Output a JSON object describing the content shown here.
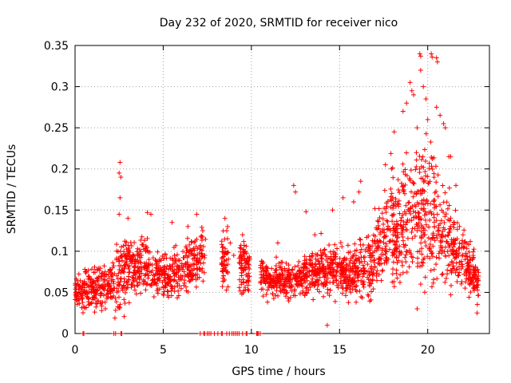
{
  "chart_data": {
    "type": "scatter",
    "title": "Day 232 of 2020, SRMTID for receiver nico",
    "xlabel": "GPS time / hours",
    "ylabel": "SRMTID / TECUs",
    "xlim": [
      0,
      23.5
    ],
    "ylim": [
      0,
      0.35
    ],
    "xticks": [
      0,
      5,
      10,
      15,
      20
    ],
    "xtick_labels": [
      "0",
      "5",
      "10",
      "15",
      "20"
    ],
    "yticks": [
      0,
      0.05,
      0.1,
      0.15,
      0.2,
      0.25,
      0.3,
      0.35
    ],
    "ytick_labels": [
      "0",
      "0.05",
      "0.1",
      "0.15",
      "0.2",
      "0.25",
      "0.3",
      "0.35"
    ],
    "grid": true,
    "marker": "plus",
    "color": "#ff0000",
    "profile_hours": [
      0,
      1,
      2,
      2.5,
      3,
      4,
      5,
      6,
      7,
      7.4,
      8.5,
      9.6,
      10.5,
      11,
      12,
      13,
      14,
      15,
      16,
      17,
      17.5,
      18,
      19,
      19.5,
      20,
      20.5,
      21,
      22,
      23
    ],
    "profile_center": [
      0.05,
      0.055,
      0.058,
      0.07,
      0.08,
      0.085,
      0.07,
      0.075,
      0.09,
      0.1,
      0.09,
      0.08,
      0.07,
      0.065,
      0.065,
      0.07,
      0.08,
      0.075,
      0.075,
      0.09,
      0.11,
      0.13,
      0.14,
      0.15,
      0.16,
      0.14,
      0.12,
      0.09,
      0.06
    ],
    "profile_spread": [
      0.015,
      0.02,
      0.02,
      0.04,
      0.03,
      0.025,
      0.02,
      0.025,
      0.025,
      0.03,
      0.03,
      0.025,
      0.02,
      0.015,
      0.02,
      0.02,
      0.025,
      0.025,
      0.03,
      0.035,
      0.045,
      0.06,
      0.065,
      0.07,
      0.07,
      0.06,
      0.05,
      0.03,
      0.02
    ],
    "gaps": [
      [
        7.4,
        8.3
      ],
      [
        8.7,
        9.3
      ],
      [
        9.9,
        10.5
      ]
    ],
    "sparse_points": [
      {
        "x": 8.5,
        "y": 0.14
      },
      {
        "x": 8.6,
        "y": 0.125
      },
      {
        "x": 8.8,
        "y": 0.11
      },
      {
        "x": 9.0,
        "y": 0.095
      },
      {
        "x": 9.5,
        "y": 0.12
      },
      {
        "x": 9.6,
        "y": 0.1
      },
      {
        "x": 9.7,
        "y": 0.08
      },
      {
        "x": 9.8,
        "y": 0.07
      }
    ],
    "outliers": [
      {
        "x": 2.55,
        "y": 0.208
      },
      {
        "x": 2.5,
        "y": 0.195
      },
      {
        "x": 2.6,
        "y": 0.19
      },
      {
        "x": 2.55,
        "y": 0.165
      },
      {
        "x": 2.5,
        "y": 0.145
      },
      {
        "x": 4.1,
        "y": 0.147
      },
      {
        "x": 4.3,
        "y": 0.145
      },
      {
        "x": 6.4,
        "y": 0.13
      },
      {
        "x": 12.4,
        "y": 0.18
      },
      {
        "x": 12.5,
        "y": 0.172
      },
      {
        "x": 13.1,
        "y": 0.148
      },
      {
        "x": 14.3,
        "y": 0.01
      },
      {
        "x": 16.2,
        "y": 0.185
      },
      {
        "x": 16.1,
        "y": 0.172
      },
      {
        "x": 17.6,
        "y": 0.205
      },
      {
        "x": 18.1,
        "y": 0.245
      },
      {
        "x": 18.6,
        "y": 0.27
      },
      {
        "x": 18.8,
        "y": 0.28
      },
      {
        "x": 19.0,
        "y": 0.305
      },
      {
        "x": 19.1,
        "y": 0.295
      },
      {
        "x": 19.2,
        "y": 0.29
      },
      {
        "x": 19.4,
        "y": 0.25
      },
      {
        "x": 19.6,
        "y": 0.32
      },
      {
        "x": 19.75,
        "y": 0.3
      },
      {
        "x": 19.9,
        "y": 0.285
      },
      {
        "x": 20.0,
        "y": 0.26
      },
      {
        "x": 20.2,
        "y": 0.34
      },
      {
        "x": 20.25,
        "y": 0.336
      },
      {
        "x": 19.55,
        "y": 0.34
      },
      {
        "x": 19.6,
        "y": 0.337
      },
      {
        "x": 20.5,
        "y": 0.335
      },
      {
        "x": 20.55,
        "y": 0.33
      },
      {
        "x": 20.7,
        "y": 0.265
      },
      {
        "x": 21.0,
        "y": 0.25
      },
      {
        "x": 20.9,
        "y": 0.255
      },
      {
        "x": 21.2,
        "y": 0.215
      },
      {
        "x": 21.3,
        "y": 0.215
      },
      {
        "x": 21.6,
        "y": 0.18
      },
      {
        "x": 20.5,
        "y": 0.275
      },
      {
        "x": 19.8,
        "y": 0.12
      },
      {
        "x": 19.6,
        "y": 0.06
      },
      {
        "x": 19.4,
        "y": 0.03
      },
      {
        "x": 15.2,
        "y": 0.165
      },
      {
        "x": 15.8,
        "y": 0.16
      },
      {
        "x": 14.6,
        "y": 0.15
      },
      {
        "x": 3.0,
        "y": 0.14
      },
      {
        "x": 5.5,
        "y": 0.135
      },
      {
        "x": 6.9,
        "y": 0.145
      },
      {
        "x": 11.5,
        "y": 0.11
      },
      {
        "x": 13.6,
        "y": 0.12
      },
      {
        "x": 22.7,
        "y": 0.08
      },
      {
        "x": 22.8,
        "y": 0.025
      },
      {
        "x": 22.0,
        "y": 0.12
      },
      {
        "x": 21.8,
        "y": 0.13
      }
    ],
    "zero_points_x": [
      0.45,
      0.5,
      2.2,
      2.3,
      2.6,
      2.65,
      7.1,
      7.3,
      7.35,
      7.5,
      7.6,
      7.7,
      7.9,
      8.1,
      8.3,
      8.35,
      8.6,
      8.75,
      8.9,
      9.0,
      9.1,
      9.2,
      9.3,
      9.5,
      9.7,
      9.75,
      10.3,
      10.35,
      10.4,
      10.5
    ]
  }
}
